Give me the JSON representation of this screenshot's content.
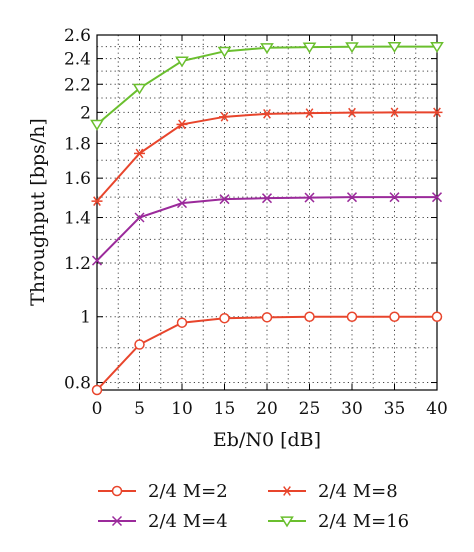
{
  "chart_data": {
    "type": "line",
    "xlabel": "Eb/N0 [dB]",
    "ylabel": "Throughput [bps/h]",
    "x": [
      0,
      5,
      10,
      15,
      20,
      25,
      30,
      35,
      40
    ],
    "xlim": [
      0,
      40
    ],
    "ylim": [
      0.78,
      2.6
    ],
    "yscale": "log",
    "x_ticks": [
      "0",
      "5",
      "10",
      "15",
      "20",
      "25",
      "30",
      "35",
      "40"
    ],
    "y_ticks": [
      {
        "value": 0.8,
        "label": "0.8"
      },
      {
        "value": 1.0,
        "label": "1"
      },
      {
        "value": 1.2,
        "label": "1.2"
      },
      {
        "value": 1.4,
        "label": "1.4"
      },
      {
        "value": 1.6,
        "label": "1.6"
      },
      {
        "value": 1.8,
        "label": "1.8"
      },
      {
        "value": 2.0,
        "label": "2"
      },
      {
        "value": 2.2,
        "label": "2.2"
      },
      {
        "value": 2.4,
        "label": "2.4"
      },
      {
        "value": 2.6,
        "label": "2.6"
      }
    ],
    "grid": "dotted",
    "legend_position": "bottom",
    "series": [
      {
        "name": "2/4 M=2",
        "marker": "circle",
        "color": "#e8452c",
        "values": [
          0.78,
          0.91,
          0.98,
          0.995,
          0.998,
          1.0,
          1.0,
          1.0,
          1.0
        ]
      },
      {
        "name": "2/4 M=8",
        "marker": "asterisk",
        "color": "#e8452c",
        "values": [
          1.48,
          1.74,
          1.92,
          1.97,
          1.99,
          1.995,
          1.998,
          2.0,
          2.0
        ]
      },
      {
        "name": "2/4 M=4",
        "marker": "x",
        "color": "#9b2a9b",
        "values": [
          1.21,
          1.4,
          1.47,
          1.49,
          1.495,
          1.498,
          1.5,
          1.5,
          1.5
        ]
      },
      {
        "name": "2/4 M=16",
        "marker": "triangle-down",
        "color": "#6abf2e",
        "values": [
          1.92,
          2.17,
          2.38,
          2.46,
          2.49,
          2.495,
          2.498,
          2.5,
          2.5
        ]
      }
    ]
  }
}
